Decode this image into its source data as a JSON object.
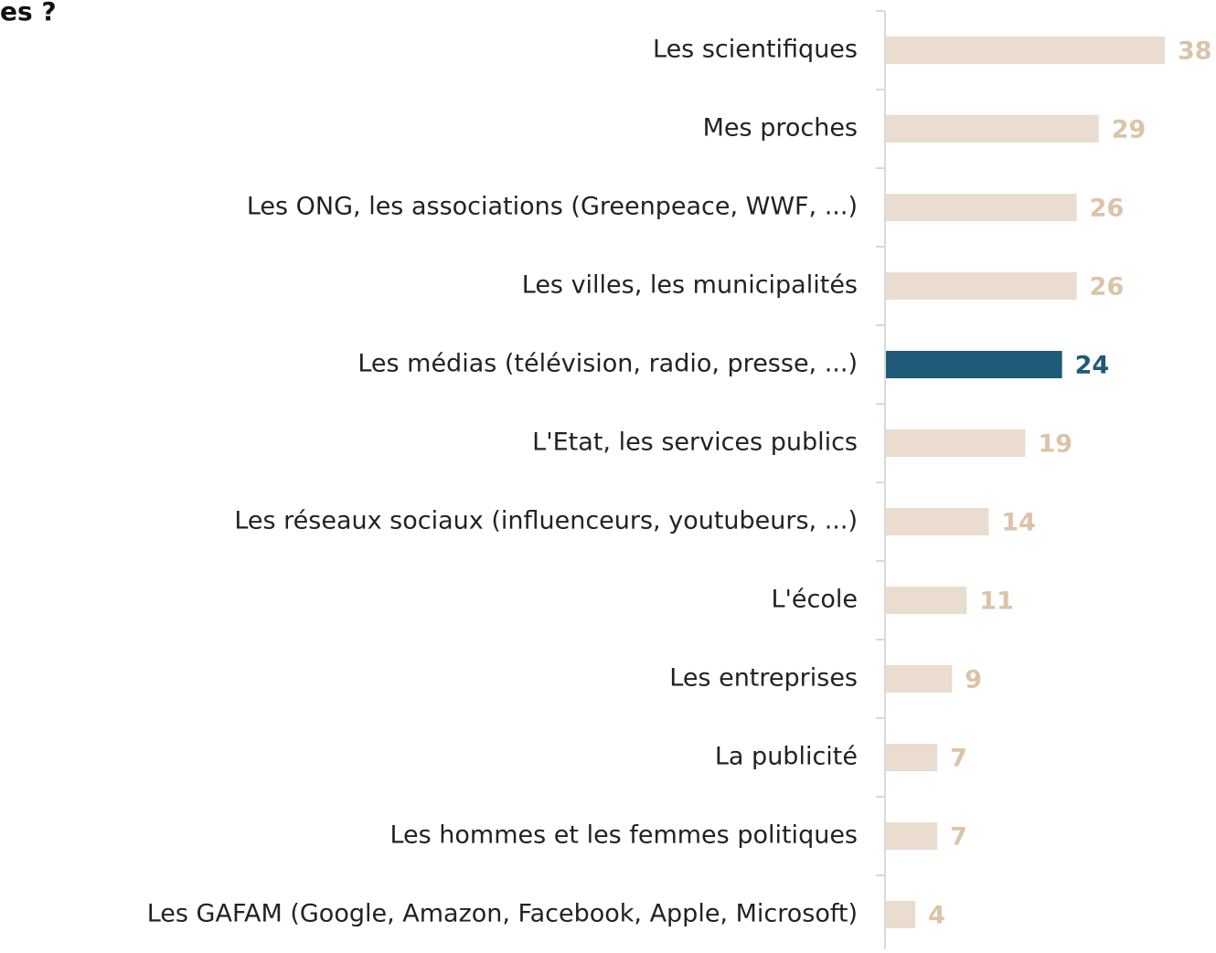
{
  "chart_data": {
    "type": "bar",
    "orientation": "horizontal",
    "title": "es ?",
    "categories": [
      "Les scientifiques",
      "Mes proches",
      "Les ONG, les associations (Greenpeace, WWF, ...)",
      "Les villes, les municipalités",
      "Les médias (télévision, radio, presse, ...)",
      "L'Etat, les services publics",
      "Les réseaux sociaux (influenceurs, youtubeurs, ...)",
      "L'école",
      "Les entreprises",
      "La publicité",
      "Les hommes et les femmes politiques",
      "Les GAFAM (Google, Amazon, Facebook, Apple, Microsoft)"
    ],
    "values": [
      38,
      29,
      26,
      26,
      24,
      19,
      14,
      11,
      9,
      7,
      7,
      4
    ],
    "colors": [
      "#eadccf",
      "#eadccf",
      "#eadccf",
      "#eadccf",
      "#1f5a78",
      "#eadccf",
      "#eadccf",
      "#eadccf",
      "#eadccf",
      "#eadccf",
      "#eadccf",
      "#eadccf"
    ],
    "label_colors": [
      "#dcc3a8",
      "#dcc3a8",
      "#dcc3a8",
      "#dcc3a8",
      "#1f5a78",
      "#dcc3a8",
      "#dcc3a8",
      "#dcc3a8",
      "#dcc3a8",
      "#dcc3a8",
      "#dcc3a8",
      "#dcc3a8"
    ]
  }
}
